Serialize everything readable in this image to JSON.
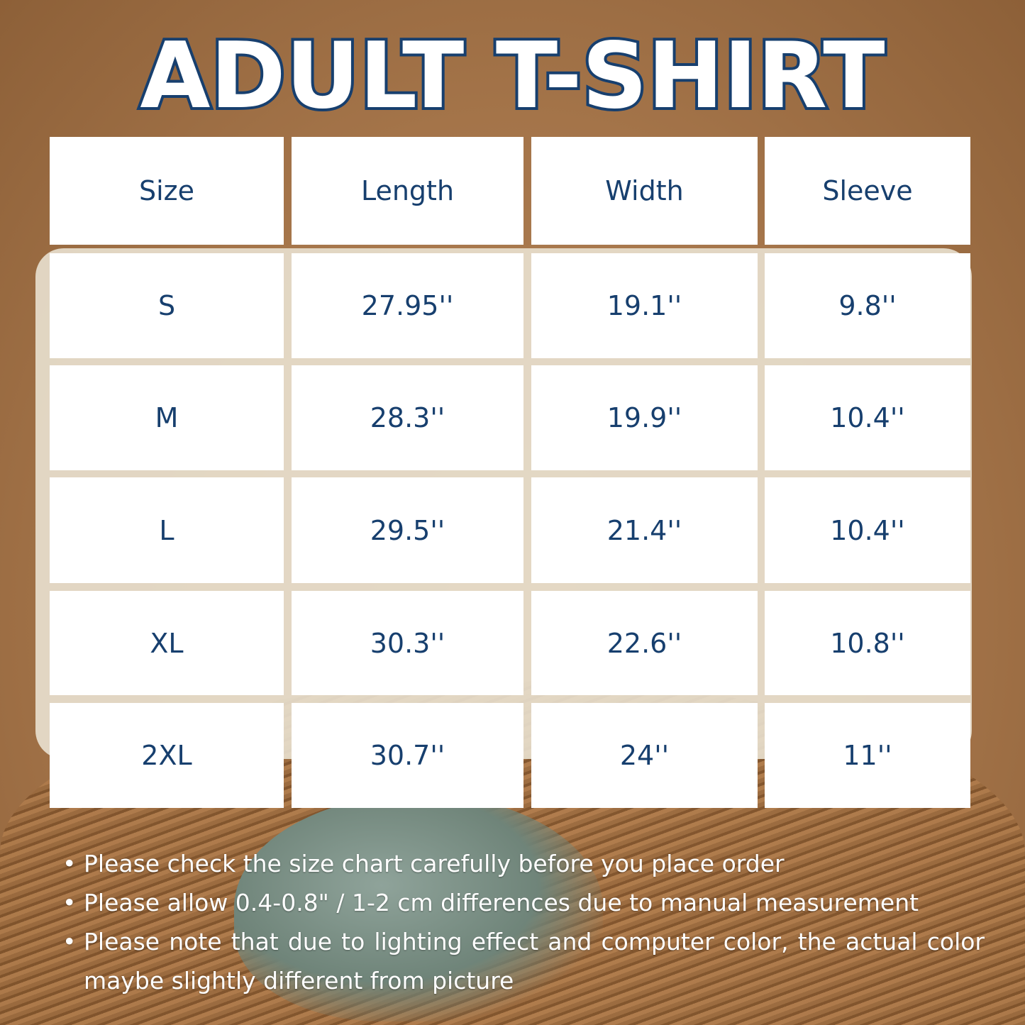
{
  "title": "ADULT T-SHIRT",
  "table": {
    "headers": [
      "Size",
      "Length",
      "Width",
      "Sleeve"
    ],
    "rows": [
      [
        "S",
        "27.95''",
        "19.1''",
        "9.8''"
      ],
      [
        "M",
        "28.3''",
        "19.9''",
        "10.4''"
      ],
      [
        "L",
        "29.5''",
        "21.4''",
        "10.4''"
      ],
      [
        "XL",
        "30.3''",
        "22.6''",
        "10.8''"
      ],
      [
        "2XL",
        "30.7''",
        "24''",
        "11''"
      ]
    ]
  },
  "notes": [
    "Please check the size chart carefully before you place order",
    "Please allow 0.4-0.8\" / 1-2 cm differences due to manual measurement",
    "Please note that due to lighting effect and computer color, the actual color maybe slightly different from picture"
  ],
  "colors": {
    "text": "#173f6e",
    "background": "#a5754a",
    "cell": "#ffffff"
  }
}
